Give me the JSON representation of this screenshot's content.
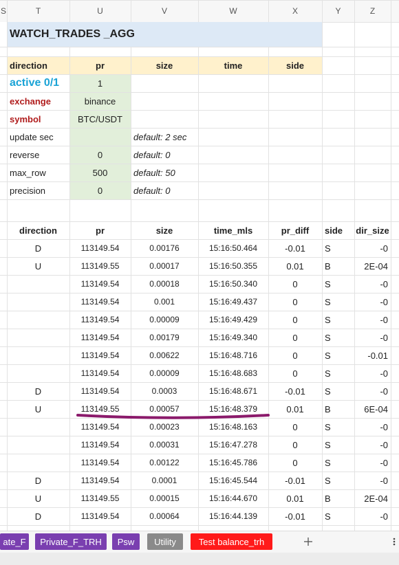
{
  "columns": [
    "S",
    "T",
    "U",
    "V",
    "W",
    "X",
    "Y",
    "Z"
  ],
  "title": "WATCH_TRADES _AGG",
  "config": {
    "header": [
      "direction",
      "pr",
      "size",
      "time",
      "side"
    ],
    "rows": [
      {
        "label": "active 0/1",
        "value": "1",
        "default": null
      },
      {
        "label": "exchange",
        "value": "binance",
        "default": null
      },
      {
        "label": "symbol",
        "value": "BTC/USDT",
        "default": null
      },
      {
        "label": "update sec",
        "value": null,
        "default": "default:  2 sec"
      },
      {
        "label": "reverse",
        "value": "0",
        "default": "default: 0"
      },
      {
        "label": "max_row",
        "value": "500",
        "default": "default: 50"
      },
      {
        "label": "precision",
        "value": "0",
        "default": "default: 0"
      }
    ]
  },
  "table": {
    "header": [
      "direction",
      "pr",
      "size",
      "time_mls",
      "pr_diff",
      "side",
      "dir_size"
    ],
    "rows": [
      [
        "D",
        "113149.54",
        "0.00176",
        "15:16:50.464",
        "-0.01",
        "S",
        "-0"
      ],
      [
        "U",
        "113149.55",
        "0.00017",
        "15:16:50.355",
        "0.01",
        "B",
        "2E-04"
      ],
      [
        null,
        "113149.54",
        "0.00018",
        "15:16:50.340",
        "0",
        "S",
        "-0"
      ],
      [
        null,
        "113149.54",
        "0.001",
        "15:16:49.437",
        "0",
        "S",
        "-0"
      ],
      [
        null,
        "113149.54",
        "0.00009",
        "15:16:49.429",
        "0",
        "S",
        "-0"
      ],
      [
        null,
        "113149.54",
        "0.00179",
        "15:16:49.340",
        "0",
        "S",
        "-0"
      ],
      [
        null,
        "113149.54",
        "0.00622",
        "15:16:48.716",
        "0",
        "S",
        "-0.01"
      ],
      [
        null,
        "113149.54",
        "0.00009",
        "15:16:48.683",
        "0",
        "S",
        "-0"
      ],
      [
        "D",
        "113149.54",
        "0.0003",
        "15:16:48.671",
        "-0.01",
        "S",
        "-0"
      ],
      [
        "U",
        "113149.55",
        "0.00057",
        "15:16:48.379",
        "0.01",
        "B",
        "6E-04"
      ],
      [
        null,
        "113149.54",
        "0.00023",
        "15:16:48.163",
        "0",
        "S",
        "-0"
      ],
      [
        null,
        "113149.54",
        "0.00031",
        "15:16:47.278",
        "0",
        "S",
        "-0"
      ],
      [
        null,
        "113149.54",
        "0.00122",
        "15:16:45.786",
        "0",
        "S",
        "-0"
      ],
      [
        "D",
        "113149.54",
        "0.0001",
        "15:16:45.544",
        "-0.01",
        "S",
        "-0"
      ],
      [
        "U",
        "113149.55",
        "0.00015",
        "15:16:44.670",
        "0.01",
        "B",
        "2E-04"
      ],
      [
        "D",
        "113149.54",
        "0.00064",
        "15:16:44.139",
        "-0.01",
        "S",
        "-0"
      ]
    ]
  },
  "tabs": [
    "ate_F",
    "Private_F_TRH",
    "Psw",
    "Utility",
    "Test balance_trh"
  ]
}
